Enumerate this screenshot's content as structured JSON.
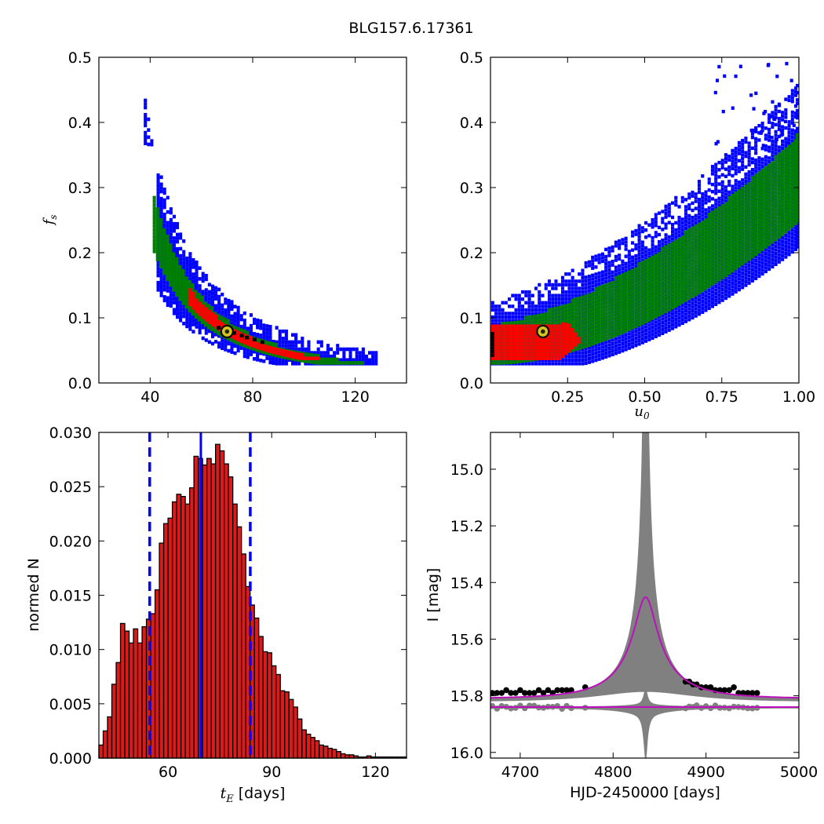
{
  "figure": {
    "title": "BLG157.6.17361"
  },
  "colors": {
    "blue": "#0000ff",
    "green": "#008000",
    "red": "#ff0000",
    "black": "#000000",
    "bar": "#dd1a1a",
    "magenta": "#bb11bb",
    "gray": "#808080",
    "marker": "#d4c61f"
  },
  "chart_data": [
    {
      "id": "panel1",
      "type": "heatmap",
      "xlabel": "",
      "ylabel": "f_s",
      "xlim": [
        20,
        140
      ],
      "ylim": [
        0.0,
        0.5
      ],
      "xticks": [
        "40",
        "80",
        "120"
      ],
      "yticks": [
        "0.0",
        "0.1",
        "0.2",
        "0.3",
        "0.4",
        "0.5"
      ],
      "best_fit": {
        "x": 70,
        "y": 0.079
      },
      "levels": [
        "3-sigma (blue)",
        "2-sigma (green)",
        "1-sigma (red)",
        "peak (black)"
      ]
    },
    {
      "id": "panel2",
      "type": "heatmap",
      "xlabel": "u_0",
      "ylabel": "",
      "xlim": [
        0.0,
        1.0
      ],
      "ylim": [
        0.0,
        0.5
      ],
      "xticks": [
        "0.25",
        "0.50",
        "0.75",
        "1.00"
      ],
      "yticks": [
        "0.0",
        "0.1",
        "0.2",
        "0.3",
        "0.4",
        "0.5"
      ],
      "best_fit": {
        "x": 0.17,
        "y": 0.079
      }
    },
    {
      "id": "panel3",
      "type": "bar",
      "xlabel_prefix": "t_E",
      "xlabel": "[days]",
      "ylabel": "normed N",
      "xlim": [
        40,
        129
      ],
      "ylim": [
        0.0,
        0.03
      ],
      "xticks": [
        "60",
        "90",
        "120"
      ],
      "yticks": [
        "0.000",
        "0.005",
        "0.010",
        "0.015",
        "0.020",
        "0.025",
        "0.030"
      ],
      "bin_start": 40,
      "bin_width": 1.25,
      "values": [
        0.0012,
        0.0025,
        0.0038,
        0.0068,
        0.0088,
        0.0124,
        0.0117,
        0.0106,
        0.0119,
        0.0106,
        0.0121,
        0.0128,
        0.0133,
        0.0155,
        0.0198,
        0.0216,
        0.0221,
        0.0236,
        0.0243,
        0.0241,
        0.0234,
        0.0249,
        0.0278,
        0.0276,
        0.027,
        0.0276,
        0.0271,
        0.0289,
        0.0283,
        0.0271,
        0.0259,
        0.0234,
        0.0213,
        0.0188,
        0.0158,
        0.0141,
        0.0129,
        0.0112,
        0.0098,
        0.0097,
        0.0085,
        0.0077,
        0.0062,
        0.0061,
        0.0054,
        0.0047,
        0.0036,
        0.0026,
        0.0022,
        0.0019,
        0.0016,
        0.0012,
        0.0011,
        0.0009,
        0.0008,
        0.0006,
        0.0004,
        0.0003,
        0.0003,
        0.0002,
        0.0001,
        0.0001,
        0.0002,
        0.0001,
        0.0001,
        0.0001,
        0.0001,
        0.0001,
        0.0001,
        0.0001,
        0.0001,
        0.0001
      ],
      "median": 69.5,
      "bounds": [
        54.7,
        83.8
      ]
    },
    {
      "id": "panel4",
      "type": "line",
      "xlabel": "HJD-2450000 [days]",
      "ylabel": "I [mag]",
      "xlim": [
        4668,
        5000
      ],
      "ylim": [
        16.02,
        14.87
      ],
      "xticks": [
        "4700",
        "4800",
        "4900",
        "5000"
      ],
      "yticks": [
        "15.0",
        "15.2",
        "15.4",
        "15.6",
        "15.8",
        "16.0"
      ],
      "model": {
        "t0": 4835,
        "tE": 70,
        "u0": 0.17,
        "fs": 0.079,
        "baseline": 15.81
      },
      "residual_offset": 15.84,
      "data_points": [
        [
          4670,
          15.79
        ],
        [
          4675,
          15.79
        ],
        [
          4680,
          15.79
        ],
        [
          4685,
          15.78
        ],
        [
          4690,
          15.79
        ],
        [
          4695,
          15.79
        ],
        [
          4700,
          15.78
        ],
        [
          4705,
          15.79
        ],
        [
          4710,
          15.79
        ],
        [
          4715,
          15.79
        ],
        [
          4720,
          15.78
        ],
        [
          4725,
          15.79
        ],
        [
          4730,
          15.78
        ],
        [
          4735,
          15.79
        ],
        [
          4740,
          15.78
        ],
        [
          4745,
          15.78
        ],
        [
          4750,
          15.78
        ],
        [
          4755,
          15.78
        ],
        [
          4770,
          15.77
        ],
        [
          4878,
          15.75
        ],
        [
          4882,
          15.75
        ],
        [
          4886,
          15.76
        ],
        [
          4890,
          15.76
        ],
        [
          4895,
          15.77
        ],
        [
          4900,
          15.77
        ],
        [
          4905,
          15.77
        ],
        [
          4910,
          15.78
        ],
        [
          4915,
          15.78
        ],
        [
          4920,
          15.78
        ],
        [
          4925,
          15.78
        ],
        [
          4930,
          15.77
        ],
        [
          4935,
          15.79
        ],
        [
          4940,
          15.79
        ],
        [
          4945,
          15.79
        ],
        [
          4950,
          15.79
        ],
        [
          4955,
          15.79
        ]
      ]
    }
  ]
}
